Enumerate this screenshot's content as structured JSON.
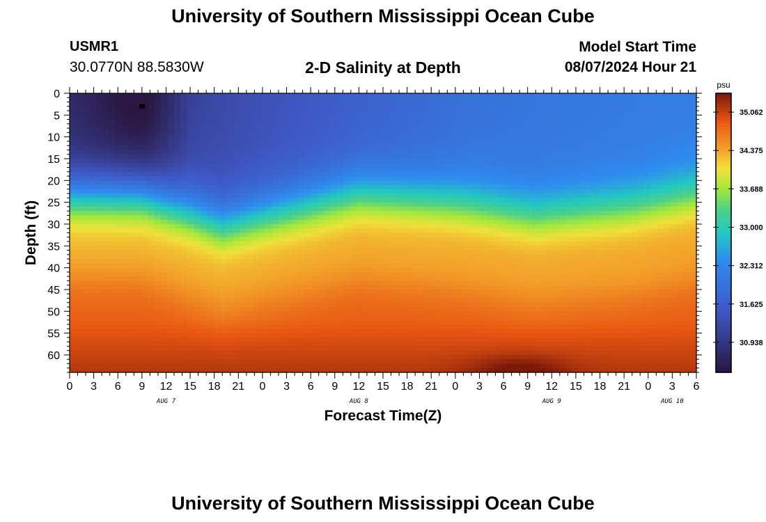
{
  "header": {
    "title": "University of Southern Mississippi Ocean Cube",
    "station_id": "USMR1",
    "coordinates": "30.0770N  88.5830W",
    "plot_title": "2-D Salinity at Depth",
    "model_start_label": "Model Start Time",
    "model_start_value": "08/07/2024 Hour 21"
  },
  "footer": {
    "title": "University of Southern Mississippi Ocean Cube"
  },
  "chart_data": {
    "type": "heatmap",
    "title": "2-D Salinity at Depth",
    "xlabel": "Forecast Time(Z)",
    "ylabel": "Depth (ft)",
    "x_tick_labels": [
      "0",
      "3",
      "6",
      "9",
      "12",
      "15",
      "18",
      "21",
      "0",
      "3",
      "6",
      "9",
      "12",
      "15",
      "18",
      "21",
      "0",
      "3",
      "6",
      "9",
      "12",
      "15",
      "18",
      "21",
      "0",
      "3",
      "6"
    ],
    "date_labels": [
      {
        "text": "AUG 7",
        "tick_index": 4
      },
      {
        "text": "AUG 8",
        "tick_index": 12
      },
      {
        "text": "AUG 9",
        "tick_index": 20
      },
      {
        "text": "AUG 10",
        "tick_index": 25
      }
    ],
    "y_ticks": [
      0,
      5,
      10,
      15,
      20,
      25,
      30,
      35,
      40,
      45,
      50,
      55,
      60
    ],
    "ylim": [
      0,
      64
    ],
    "xlim_hours": [
      0,
      78
    ],
    "colorbar": {
      "unit": "psu",
      "tick_labels": [
        "35.062",
        "34.375",
        "33.688",
        "33.000",
        "32.312",
        "31.625",
        "30.938"
      ],
      "tick_values": [
        35.062,
        34.375,
        33.688,
        33.0,
        32.312,
        31.625,
        30.938
      ],
      "range": [
        30.4,
        35.4
      ]
    },
    "colors": {
      "low": "#2a1640",
      "mid_low": "#3f58c5",
      "mid": "#4bd08a",
      "mid_high": "#f3a02a",
      "high": "#7c1a0a"
    },
    "profile": {
      "surface_salinity_by_hour": [
        [
          0,
          30.75
        ],
        [
          9,
          30.55
        ],
        [
          15,
          31.2
        ],
        [
          30,
          31.5
        ],
        [
          50,
          31.95
        ],
        [
          78,
          32.15
        ]
      ],
      "halocline_depth_ft_by_hour": [
        [
          0,
          24
        ],
        [
          9,
          24
        ],
        [
          19,
          31
        ],
        [
          36,
          24
        ],
        [
          48,
          26
        ],
        [
          58,
          29
        ],
        [
          70,
          27
        ],
        [
          78,
          24
        ]
      ],
      "deep_salinity": 34.85,
      "bottom_salinity": 35.1
    }
  }
}
